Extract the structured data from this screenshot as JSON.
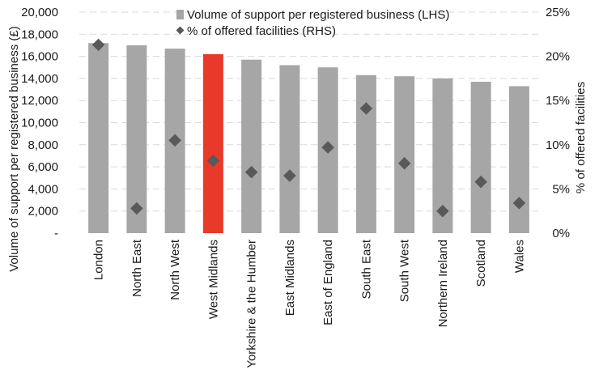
{
  "chart_data": {
    "type": "bar",
    "categories": [
      "London",
      "North East",
      "North West",
      "West Midlands",
      "Yorkshire & the Humber",
      "East Midlands",
      "East of England",
      "South East",
      "South West",
      "Northern Ireland",
      "Scotland",
      "Wales"
    ],
    "series": [
      {
        "name": "Volume of support per registered business (LHS)",
        "type": "bar",
        "axis": "left",
        "values": [
          17200,
          17000,
          16700,
          16200,
          15700,
          15200,
          15000,
          14300,
          14200,
          14000,
          13700,
          13300
        ]
      },
      {
        "name": "% of offered facilities (RHS)",
        "type": "scatter",
        "axis": "right",
        "values": [
          0.213,
          0.028,
          0.105,
          0.082,
          0.069,
          0.065,
          0.097,
          0.141,
          0.079,
          0.025,
          0.058,
          0.034
        ]
      }
    ],
    "highlight_category": "West Midlands",
    "ylabel_left": "Volume of support per registered business (£)",
    "ylabel_right": "% of offered facilities",
    "ylim_left": [
      0,
      20000
    ],
    "ylim_right": [
      0,
      0.25
    ],
    "yticks_left": [
      0,
      2000,
      4000,
      6000,
      8000,
      10000,
      12000,
      14000,
      16000,
      18000,
      20000
    ],
    "yticklabels_left": [
      "-",
      "2,000",
      "4,000",
      "6,000",
      "8,000",
      "10,000",
      "12,000",
      "14,000",
      "16,000",
      "18,000",
      "20,000"
    ],
    "yticks_right": [
      0,
      0.05,
      0.1,
      0.15,
      0.2,
      0.25
    ],
    "yticklabels_right": [
      "0%",
      "5%",
      "10%",
      "15%",
      "20%",
      "25%"
    ],
    "grid": "horizontal dashed",
    "legend_position": "top-center",
    "colors": {
      "bar": "#a6a6a6",
      "bar_highlight": "#e8392b",
      "marker": "#595959",
      "grid": "#d9d9d9"
    }
  }
}
